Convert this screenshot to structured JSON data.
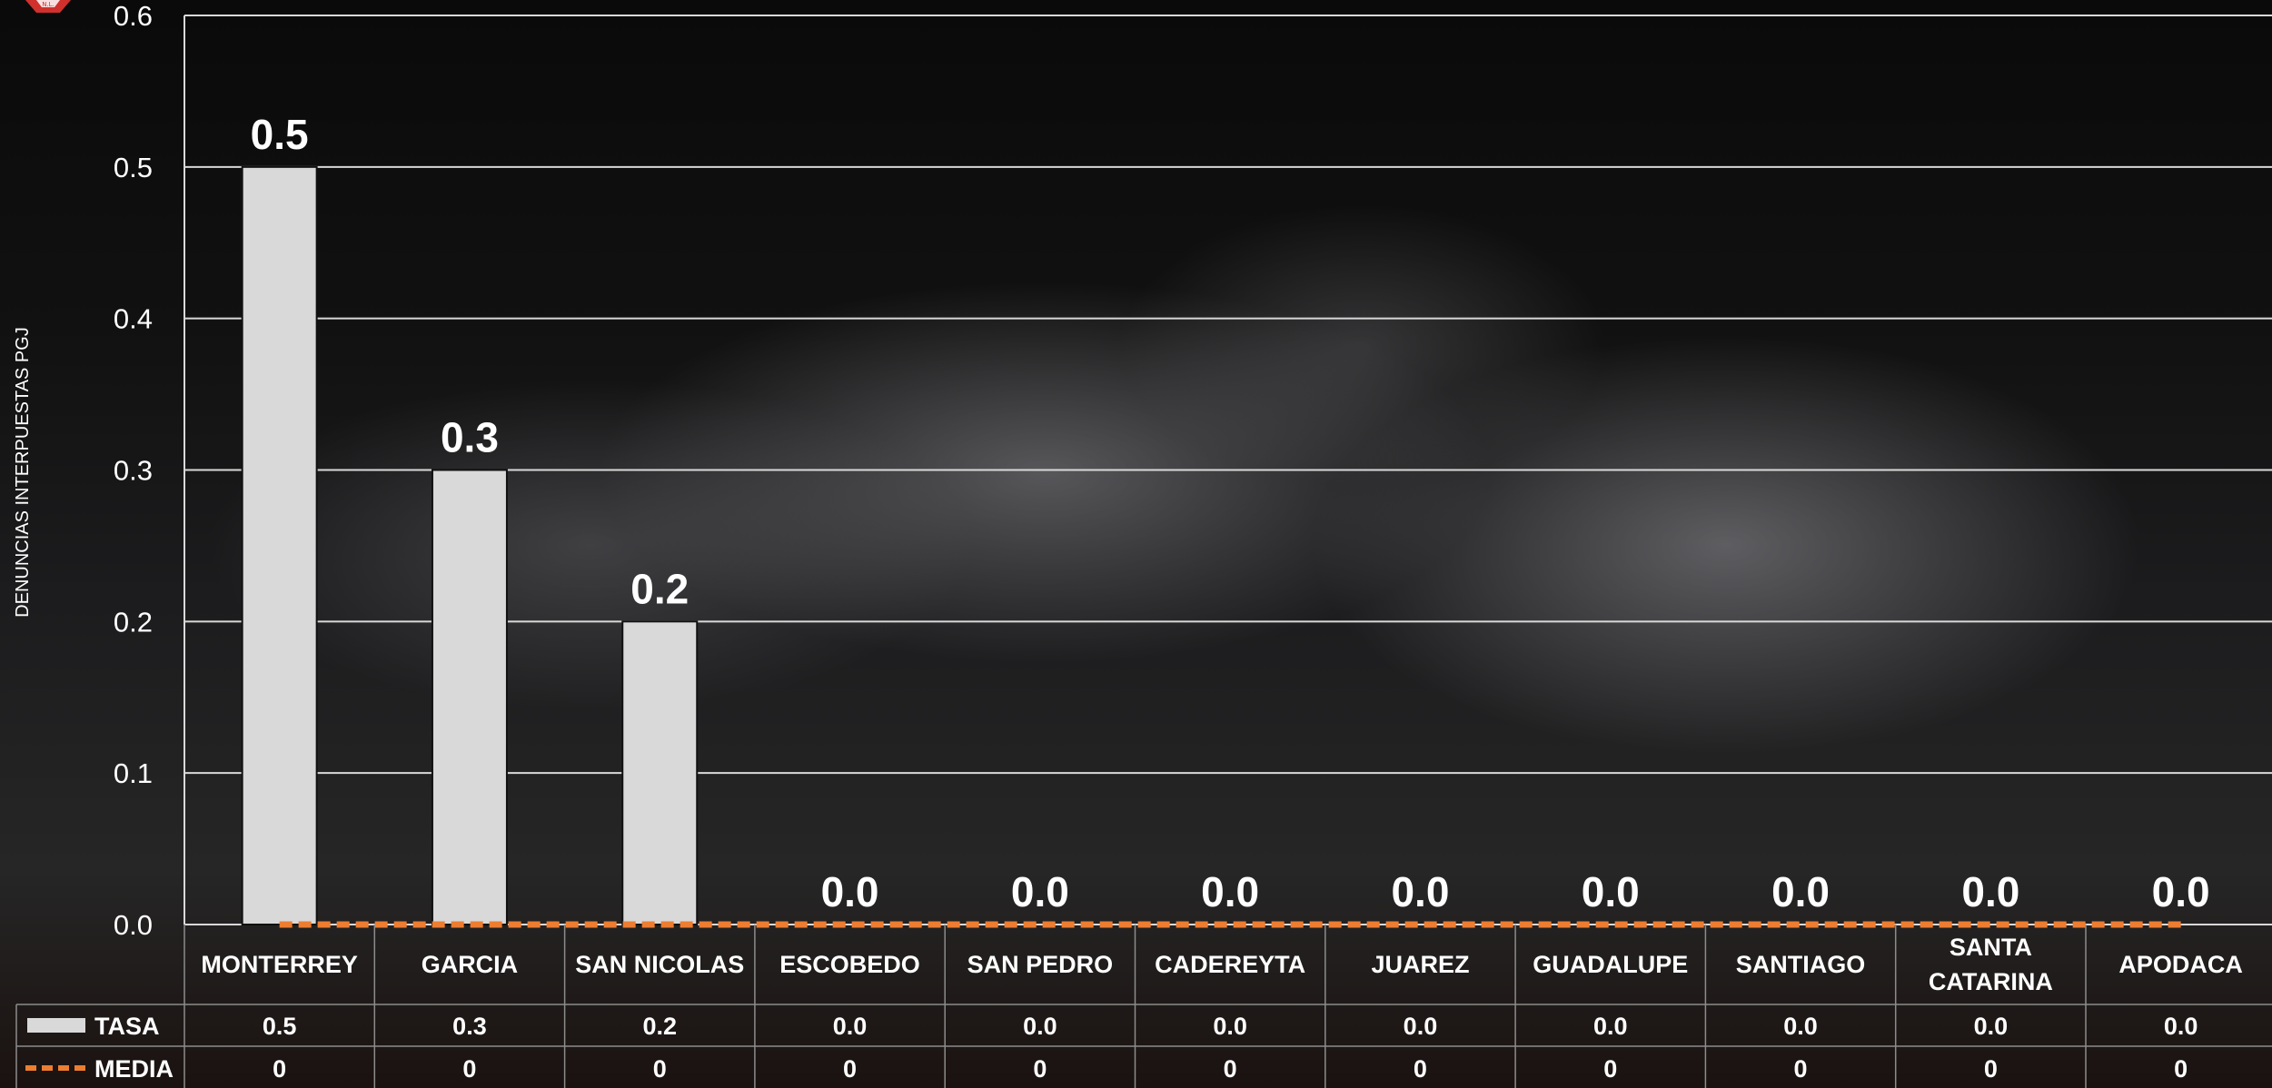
{
  "chart_data": {
    "type": "bar",
    "ylabel": "DENUNCIAS INTERPUESTAS PGJ",
    "ylim": [
      0,
      0.6
    ],
    "yticks": [
      "0.0",
      "0.1",
      "0.2",
      "0.3",
      "0.4",
      "0.5",
      "0.6"
    ],
    "categories": [
      "MONTERREY",
      "GARCIA",
      "SAN NICOLAS",
      "ESCOBEDO",
      "SAN PEDRO",
      "CADEREYTA",
      "JUAREZ",
      "GUADALUPE",
      "SANTIAGO",
      "SANTA CATARINA",
      "APODACA"
    ],
    "series": [
      {
        "name": "TASA",
        "kind": "bar",
        "color": "#d9d9d9",
        "values": [
          0.5,
          0.3,
          0.2,
          0.0,
          0.0,
          0.0,
          0.0,
          0.0,
          0.0,
          0.0,
          0.0
        ],
        "labels": [
          "0.5",
          "0.3",
          "0.2",
          "0.0",
          "0.0",
          "0.0",
          "0.0",
          "0.0",
          "0.0",
          "0.0",
          "0.0"
        ]
      },
      {
        "name": "MEDIA",
        "kind": "dashed-line",
        "color": "#ed7d31",
        "values": [
          0,
          0,
          0,
          0,
          0,
          0,
          0,
          0,
          0,
          0,
          0
        ],
        "labels": [
          "0",
          "0",
          "0",
          "0",
          "0",
          "0",
          "0",
          "0",
          "0",
          "0",
          "0"
        ]
      }
    ],
    "grid": true,
    "legend": "data-table"
  },
  "logo": {
    "name": "logo-icon",
    "text": "N.L.",
    "color": "#d0312d"
  }
}
